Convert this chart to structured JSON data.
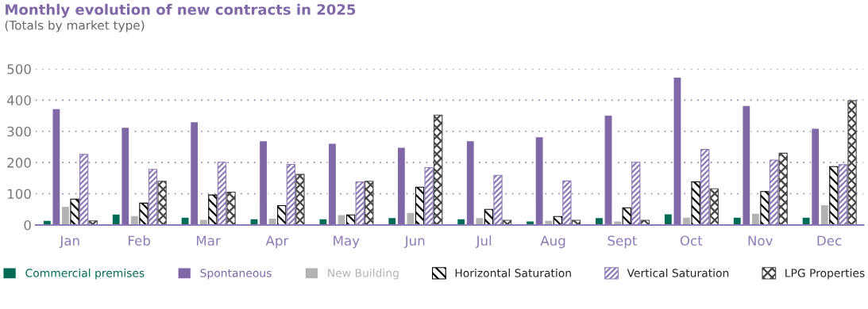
{
  "chart_data": {
    "type": "bar",
    "title": "Monthly evolution of new contracts in 2025",
    "subtitle": "(Totals by market type)",
    "categories": [
      "Jan",
      "Feb",
      "Mar",
      "Apr",
      "May",
      "Jun",
      "Jul",
      "Aug",
      "Sept",
      "Oct",
      "Nov",
      "Dec"
    ],
    "series": [
      {
        "name": "Commercial premises",
        "color": "#006b56",
        "values": [
          15,
          35,
          25,
          20,
          20,
          24,
          20,
          13,
          24,
          36,
          25,
          25
        ]
      },
      {
        "name": "Spontaneous",
        "color": "#7f67a8",
        "values": [
          373,
          313,
          331,
          270,
          262,
          249,
          270,
          283,
          352,
          474,
          383,
          310
        ]
      },
      {
        "name": "New Building",
        "color": "#b3b3b3",
        "values": [
          60,
          30,
          18,
          22,
          33,
          40,
          24,
          15,
          13,
          25,
          38,
          65
        ]
      },
      {
        "name": "Horizontal Saturation",
        "color": "#000000",
        "values": [
          83,
          70,
          96,
          62,
          32,
          121,
          50,
          27,
          55,
          138,
          107,
          187
        ]
      },
      {
        "name": "Vertical Saturation",
        "color": "#8f7ab8",
        "values": [
          226,
          178,
          201,
          194,
          138,
          184,
          159,
          141,
          201,
          242,
          208,
          193
        ]
      },
      {
        "name": "LPG Properties",
        "color": "#444444",
        "values": [
          13,
          140,
          105,
          162,
          140,
          352,
          15,
          15,
          15,
          116,
          230,
          398
        ]
      }
    ],
    "ylim": [
      0,
      500
    ],
    "yticks": [
      0,
      100,
      200,
      300,
      400,
      500
    ],
    "grid": "y",
    "legend": "bottom"
  }
}
